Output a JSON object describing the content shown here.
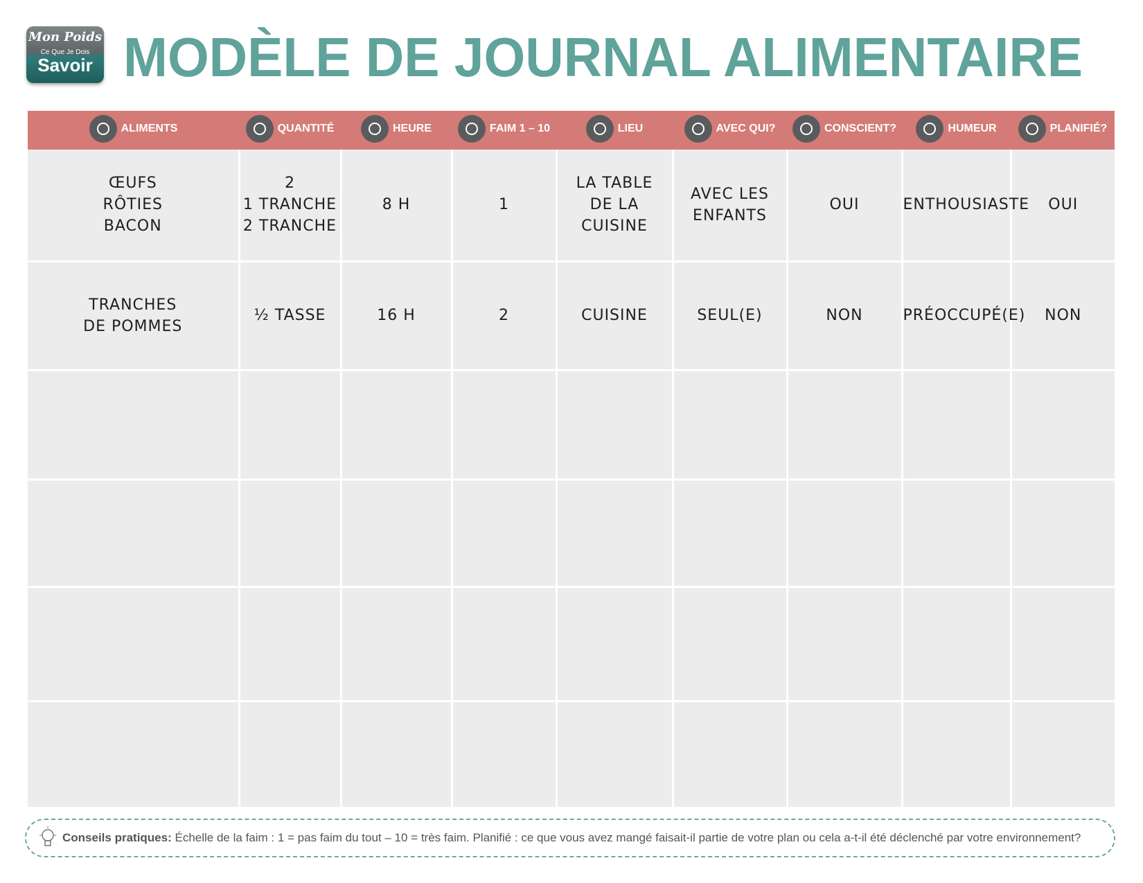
{
  "header": {
    "logo": {
      "line1": "Mon Poids",
      "line2": "Ce Que Je Dois",
      "line3": "Savoir"
    },
    "title": "MODÈLE DE JOURNAL ALIMENTAIRE"
  },
  "table": {
    "columns": [
      "ALIMENTS",
      "QUANTITÉ",
      "HEURE",
      "FAIM 1 – 10",
      "LIEU",
      "AVEC QUI?",
      "CONSCIENT?",
      "HUMEUR",
      "PLANIFIÉ?"
    ],
    "rows": [
      [
        "ŒUFS\nRÔTIES\nBACON",
        "2\n1 TRANCHE\n2 TRANCHE",
        "8 H",
        "1",
        "LA TABLE\nDE LA\nCUISINE",
        "AVEC LES\nENFANTS",
        "OUI",
        "ENTHOUSIASTE",
        "OUI"
      ],
      [
        "TRANCHES\nDE POMMES",
        "½ TASSE",
        "16 H",
        "2",
        "CUISINE",
        "SEUL(E)",
        "NON",
        "PRÉOCCUPÉ(E)",
        "NON"
      ]
    ]
  },
  "footer": {
    "label": "Conseils pratiques:",
    "text": "Échelle de la faim : 1 = pas faim du tout – 10 = très faim. Planifié : ce que vous avez mangé faisait-il partie de votre plan ou cela a-t-il été déclenché par votre environnement?"
  }
}
